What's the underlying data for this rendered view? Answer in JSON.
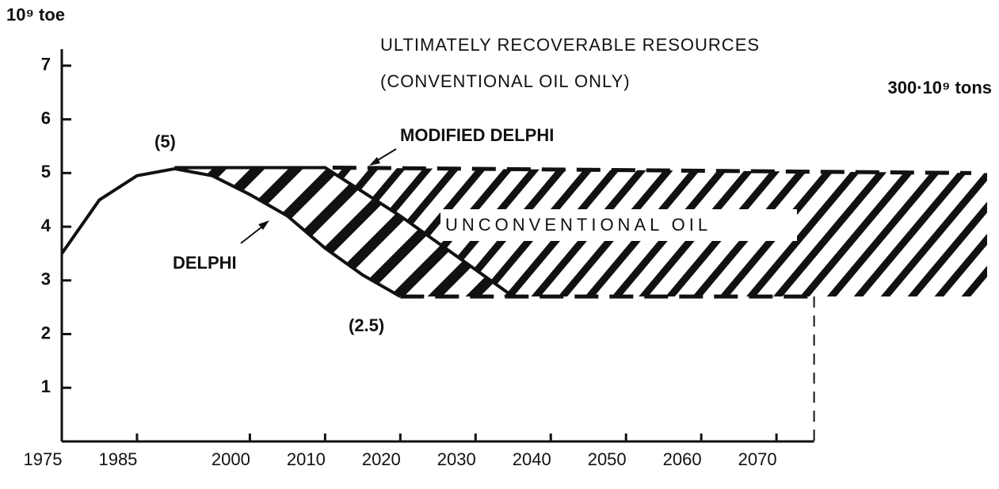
{
  "chart_data": {
    "type": "line",
    "title": "ULTIMATELY RECOVERABLE RESOURCES",
    "subtitle": "(CONVENTIONAL OIL ONLY)",
    "y_label": "10⁹ toe",
    "resource_label": "300·10⁹ tons",
    "annotations": [
      "(5)",
      "(2.5)"
    ],
    "xlim": [
      1975,
      2098
    ],
    "xticks": [
      1975,
      1985,
      2000,
      2010,
      2020,
      2030,
      2040,
      2050,
      2060,
      2070
    ],
    "ylim": [
      0,
      7.5
    ],
    "yticks": [
      1,
      2,
      3,
      4,
      5,
      6,
      7
    ],
    "x_axis_end": 2075,
    "color": "#111111",
    "series": [
      {
        "name": "DELPHI",
        "x": [
          1975,
          1980,
          1985,
          1990,
          1995,
          2000,
          2005,
          2010,
          2015,
          2020
        ],
        "values": [
          3.5,
          4.5,
          4.95,
          5.08,
          4.95,
          4.6,
          4.2,
          3.6,
          3.1,
          2.7
        ]
      },
      {
        "name": "MODIFIED DELPHI",
        "x": [
          1990,
          2010,
          2020,
          2030,
          2035
        ],
        "values": [
          5.1,
          5.1,
          4.2,
          3.2,
          2.7
        ]
      },
      {
        "name": "UNCONVENTIONAL OIL",
        "x": [
          2011,
          2098
        ],
        "values": [
          5.1,
          5.0
        ],
        "floor": 2.7
      }
    ]
  }
}
